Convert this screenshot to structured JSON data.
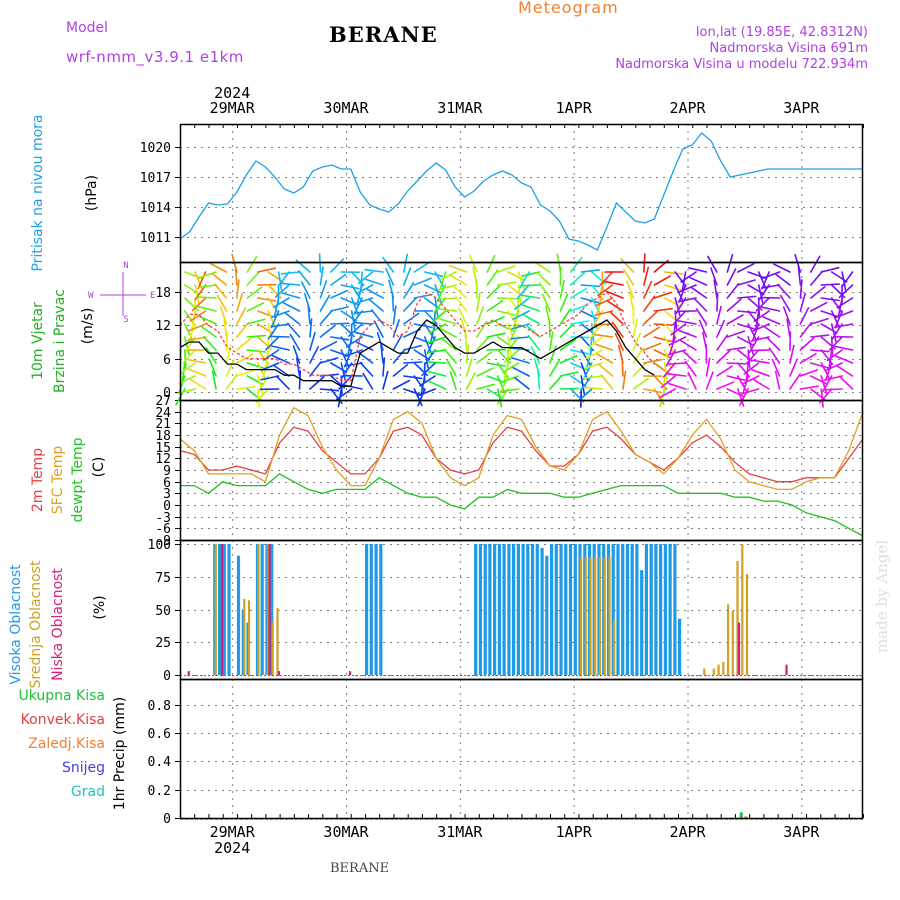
{
  "header": {
    "model_label": "Model",
    "model_value": "wrf-nmm_v3.9.1 e1km",
    "station": "BERANE",
    "product": "Meteogram",
    "coords": "lon,lat (19.85E, 42.8312N)",
    "altitude": "Nadmorska Visina 691m",
    "altitude_model": "Nadmorska Visina u modelu 722.934m",
    "footer_station": "BERANE",
    "watermark": "made by Angel"
  },
  "colors": {
    "pressure": "#1ea0e6",
    "wind_speed": "#000000",
    "gust": "#ff4040",
    "temp_2m": "#e84040",
    "temp_sfc": "#e0a020",
    "dewpoint": "#20c020",
    "cloud_high": "#1e9be6",
    "cloud_mid": "#d0a020",
    "cloud_low": "#d0207a",
    "precip_total": "#20c040",
    "precip_conv": "#e04040",
    "precip_frozen": "#f08030",
    "snow": "#4040e0",
    "graupel": "#20c0c0",
    "axis_title": "#1ea0e6",
    "wind_title": "#20b020",
    "compass": "#b040e0"
  },
  "chart_data": {
    "type": "line",
    "x_axis": {
      "top_year": "2024",
      "bottom_year": "2024",
      "day_labels": [
        "29MAR",
        "30MAR",
        "31MAR",
        "1APR",
        "2APR",
        "3APR"
      ],
      "span_hours": 144
    },
    "panels": [
      {
        "id": "pressure",
        "title": "Pritisak na nivou mora",
        "unit": "(hPa)",
        "ylim": [
          1008.5,
          1022.3
        ],
        "yticks": [
          1011,
          1014,
          1017,
          1020
        ],
        "series": [
          {
            "name": "pressure",
            "x": [
              0,
              2,
              4,
              6,
              8,
              10,
              12,
              14,
              16,
              18,
              20,
              22,
              24,
              26,
              28,
              30,
              32,
              34,
              36,
              38,
              40,
              42,
              44,
              46,
              48,
              50,
              52,
              54,
              56,
              58,
              60,
              62,
              64,
              66,
              68,
              70,
              72,
              74,
              76,
              78,
              80,
              82,
              84,
              86,
              88,
              90,
              92,
              94,
              96,
              98,
              100,
              102,
              104,
              106,
              108,
              110,
              112,
              114,
              116,
              118,
              120,
              122,
              124,
              126,
              128,
              130,
              132,
              134,
              136,
              138,
              140,
              142,
              144
            ],
            "values": [
              1010.8,
              1011.5,
              1013.0,
              1014.4,
              1014.2,
              1014.3,
              1015.5,
              1017.2,
              1018.6,
              1018.0,
              1017.0,
              1015.8,
              1015.4,
              1016.0,
              1017.6,
              1018.0,
              1018.2,
              1017.8,
              1017.8,
              1015.5,
              1014.2,
              1013.8,
              1013.5,
              1014.3,
              1015.6,
              1016.6,
              1017.6,
              1018.4,
              1017.7,
              1016.0,
              1015.0,
              1015.6,
              1016.6,
              1017.2,
              1017.6,
              1017.2,
              1016.4,
              1016.0,
              1014.2,
              1013.6,
              1012.6,
              1010.8,
              1010.6,
              1010.2,
              1009.7,
              1012.0,
              1014.4,
              1013.5,
              1012.6,
              1012.4,
              1012.8,
              1015.2,
              1017.6,
              1019.8,
              1020.2,
              1021.4,
              1020.6,
              1018.6,
              1017.0,
              1017.2,
              1017.4,
              1017.6,
              1017.8,
              1017.8,
              1017.8,
              1017.8,
              1017.8,
              1017.8,
              1017.8,
              1017.8,
              1017.8,
              1017.8,
              1017.8
            ]
          }
        ]
      },
      {
        "id": "wind",
        "title": "10m Vjetar",
        "title2": "Brzina i Pravac",
        "unit": "(m/s)",
        "ylim": [
          -1.5,
          23.5
        ],
        "yticks": [
          0,
          6,
          12,
          18
        ],
        "compass": {
          "n": "N",
          "e": "E",
          "w": "W",
          "s": "S"
        },
        "series": [
          {
            "name": "wind_speed",
            "x": [
              0,
              2,
              4,
              6,
              8,
              10,
              12,
              14,
              16,
              18,
              20,
              22,
              24,
              26,
              28,
              30,
              32,
              34,
              36,
              38,
              40,
              42,
              44,
              46,
              48,
              50,
              52,
              54,
              56,
              58,
              60,
              62,
              64,
              66,
              68,
              70,
              72,
              74,
              76,
              78,
              80,
              82,
              84,
              86,
              88,
              90,
              92,
              94,
              96,
              98,
              100
            ],
            "values": [
              8,
              9,
              9,
              7,
              7,
              5,
              5,
              4,
              4,
              4,
              4,
              3,
              3,
              2,
              2,
              2,
              2,
              1,
              1,
              7,
              8,
              9,
              8,
              7,
              7,
              11,
              13,
              12,
              10,
              8,
              7,
              7,
              8,
              9,
              8,
              8,
              8,
              7,
              6,
              7,
              8,
              9,
              10,
              11,
              12,
              13,
              11,
              8,
              6,
              4,
              3
            ]
          },
          {
            "name": "gust",
            "x": [
              0,
              2,
              4,
              6,
              8,
              10,
              12,
              14,
              16,
              18,
              20,
              22,
              24,
              26,
              28,
              30,
              32,
              34,
              36,
              38,
              40,
              42,
              44,
              46,
              48,
              50,
              52,
              54,
              56,
              58,
              60,
              62,
              64,
              66,
              68,
              70,
              72,
              74,
              76,
              78,
              80,
              82,
              84,
              86,
              88,
              90,
              92,
              94,
              96,
              98,
              100
            ],
            "values": [
              12,
              14,
              14,
              12,
              11,
              8,
              7,
              6,
              6,
              6,
              6,
              5,
              5,
              4,
              3,
              3,
              3,
              2,
              2,
              10,
              12,
              13,
              12,
              10,
              11,
              16,
              18,
              17,
              15,
              13,
              11,
              11,
              12,
              13,
              12,
              12,
              12,
              11,
              10,
              11,
              12,
              13,
              14,
              16,
              17,
              18,
              16,
              12,
              9,
              7,
              5
            ]
          }
        ]
      },
      {
        "id": "temperature",
        "title": "2m Temp",
        "title2": "SFC Temp",
        "title3": "dewpt Temp",
        "unit": "(C)",
        "ylim": [
          -9,
          27
        ],
        "yticks": [
          -9,
          -6,
          -3,
          0,
          3,
          6,
          9,
          12,
          15,
          18,
          21,
          24,
          27
        ],
        "series": [
          {
            "name": "temp_2m",
            "x": [
              0,
              3,
              6,
              9,
              12,
              15,
              18,
              21,
              24,
              27,
              30,
              33,
              36,
              39,
              42,
              45,
              48,
              51,
              54,
              57,
              60,
              63,
              66,
              69,
              72,
              75,
              78,
              81,
              84,
              87,
              90,
              93,
              96,
              99,
              102,
              105,
              108,
              111,
              114,
              117,
              120,
              123,
              126,
              129,
              132,
              135,
              138,
              141,
              144
            ],
            "values": [
              14,
              13,
              9,
              9,
              10,
              9,
              8,
              16,
              20,
              19,
              14,
              11,
              8,
              8,
              12,
              19,
              20,
              18,
              12,
              9,
              8,
              9,
              16,
              20,
              19,
              14,
              10,
              10,
              13,
              19,
              20,
              17,
              13,
              11,
              9,
              12,
              16,
              18,
              15,
              11,
              8,
              7,
              6,
              6,
              7,
              7,
              7,
              12,
              17
            ]
          },
          {
            "name": "temp_sfc",
            "x": [
              0,
              3,
              6,
              9,
              12,
              15,
              18,
              21,
              24,
              27,
              30,
              33,
              36,
              39,
              42,
              45,
              48,
              51,
              54,
              57,
              60,
              63,
              66,
              69,
              72,
              75,
              78,
              81,
              84,
              87,
              90,
              93,
              96,
              99,
              102,
              105,
              108,
              111,
              114,
              117,
              120,
              123,
              126,
              129,
              132,
              135,
              138,
              141,
              144
            ],
            "values": [
              17,
              14,
              8,
              8,
              8,
              8,
              6,
              18,
              25,
              23,
              15,
              9,
              5,
              5,
              12,
              22,
              24,
              21,
              12,
              7,
              5,
              7,
              18,
              23,
              22,
              15,
              10,
              9,
              13,
              22,
              24,
              19,
              13,
              11,
              8,
              12,
              18,
              22,
              17,
              9,
              6,
              5,
              4,
              4,
              6,
              7,
              7,
              14,
              24
            ]
          },
          {
            "name": "dewpoint",
            "x": [
              0,
              3,
              6,
              9,
              12,
              15,
              18,
              21,
              24,
              27,
              30,
              33,
              36,
              39,
              42,
              45,
              48,
              51,
              54,
              57,
              60,
              63,
              66,
              69,
              72,
              75,
              78,
              81,
              84,
              87,
              90,
              93,
              96,
              99,
              102,
              105,
              108,
              111,
              114,
              117,
              120,
              123,
              126,
              129,
              132,
              135,
              138,
              141,
              144
            ],
            "values": [
              5,
              5,
              3,
              6,
              5,
              5,
              5,
              8,
              6,
              4,
              3,
              4,
              4,
              4,
              7,
              5,
              3,
              2,
              2,
              0,
              -1,
              2,
              2,
              4,
              3,
              3,
              3,
              2,
              2,
              3,
              4,
              5,
              5,
              5,
              5,
              3,
              3,
              3,
              3,
              2,
              2,
              1,
              1,
              0,
              -2,
              -3,
              -4,
              -6,
              -8
            ]
          }
        ]
      },
      {
        "id": "clouds",
        "title": "Visoka Oblacnost",
        "title2": "Srednja Oblacnost",
        "title3": "Niska Oblacnost",
        "unit": "(%)",
        "ylim": [
          -3,
          103
        ],
        "yticks": [
          0,
          25,
          50,
          75,
          100
        ],
        "series": [
          {
            "name": "cloud_high",
            "x": [
              7,
              8,
              9,
              10,
              12,
              13,
              14,
              16,
              17,
              18,
              19,
              39,
              40,
              41,
              42,
              62,
              63,
              64,
              65,
              66,
              67,
              68,
              69,
              70,
              71,
              72,
              73,
              74,
              75,
              76,
              77,
              78,
              79,
              80,
              81,
              82,
              83,
              84,
              85,
              86,
              87,
              88,
              89,
              90,
              91,
              92,
              93,
              94,
              95,
              96,
              97,
              98,
              99,
              100,
              101,
              102,
              103,
              104,
              105
            ],
            "values": [
              100,
              100,
              100,
              100,
              91,
              50,
              40,
              100,
              100,
              100,
              100,
              100,
              100,
              100,
              100,
              100,
              100,
              100,
              100,
              100,
              100,
              100,
              100,
              100,
              100,
              100,
              100,
              100,
              100,
              97,
              91,
              100,
              100,
              100,
              100,
              100,
              100,
              100,
              100,
              100,
              100,
              100,
              100,
              100,
              100,
              100,
              100,
              100,
              100,
              100,
              80,
              100,
              100,
              100,
              100,
              100,
              100,
              100,
              43
            ]
          },
          {
            "name": "cloud_mid",
            "x": [
              7,
              13,
              14,
              16,
              18,
              19,
              20,
              84,
              85,
              86,
              87,
              88,
              89,
              90,
              91,
              110,
              112,
              113,
              114,
              115,
              116,
              117,
              118,
              119
            ],
            "values": [
              100,
              58,
              57,
              100,
              100,
              41,
              51,
              90,
              90,
              90,
              90,
              90,
              90,
              90,
              42,
              5,
              5,
              8,
              10,
              54,
              49,
              87,
              100,
              77
            ]
          },
          {
            "name": "cloud_low",
            "x": [
              1,
              8,
              18,
              20,
              35,
              117,
              127
            ],
            "values": [
              3,
              100,
              100,
              3,
              3,
              40,
              8
            ]
          }
        ]
      },
      {
        "id": "precip",
        "title": "1hr Precip (mm)",
        "ylim": [
          0,
          0.98
        ],
        "yticks": [
          0,
          0.2,
          0.4,
          0.6,
          0.8
        ],
        "legend": [
          "Ukupna Kisa",
          "Konvek.Kisa",
          "Zaledj.Kisa",
          "Snijeg",
          "Grad"
        ],
        "series": [
          {
            "name": "precip_total",
            "x": [
              118
            ],
            "values": [
              0.04
            ]
          },
          {
            "name": "precip_conv",
            "x": [
              119
            ],
            "values": [
              0.01
            ]
          }
        ]
      }
    ]
  }
}
